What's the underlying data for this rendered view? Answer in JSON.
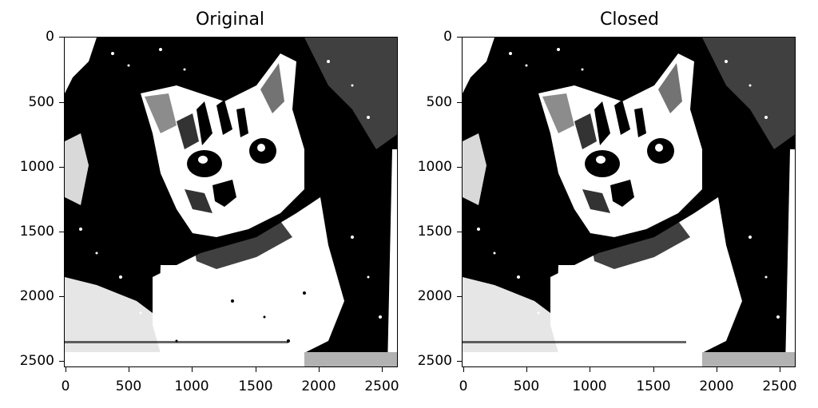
{
  "panels": [
    {
      "id": "original",
      "title": "Original",
      "y_ticks": [
        "0",
        "500",
        "1000",
        "1500",
        "2000",
        "2500"
      ],
      "x_ticks": [
        "0",
        "500",
        "1000",
        "1500",
        "2000",
        "2500"
      ]
    },
    {
      "id": "closed",
      "title": "Closed",
      "y_ticks": [
        "0",
        "500",
        "1000",
        "1500",
        "2000",
        "2500"
      ],
      "x_ticks": [
        "0",
        "500",
        "1000",
        "1500",
        "2000",
        "2500"
      ]
    }
  ],
  "image": {
    "subject": "binarized black-and-white photo of a tabby kitten",
    "colors": {
      "black": "#000000",
      "white": "#ffffff"
    }
  }
}
